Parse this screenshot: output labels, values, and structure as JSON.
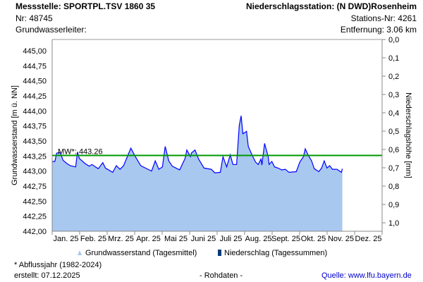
{
  "header": {
    "station": "Messstelle: SPORTPL.TSV 1860 35",
    "nr": "Nr: 48745",
    "aquifer": "Grundwasserleiter:",
    "precip_station": "Niederschlagsstation: (N DWD)Rosenheim",
    "precip_nr": "Stations-Nr: 4261",
    "distance": "Entfernung: 3.06 km"
  },
  "chart_data": {
    "type": "area",
    "ylabel": "Grundwasserstand [m ü. NN]",
    "y2label": "Niederschlagshöhe [mm]",
    "ylim": [
      442.0,
      445.0
    ],
    "y2lim": [
      0,
      1.0
    ],
    "yticks": [
      "442,00",
      "442,25",
      "442,50",
      "442,75",
      "443,00",
      "443,25",
      "443,50",
      "443,75",
      "444,00",
      "444,25",
      "444,50",
      "444,75",
      "445,00"
    ],
    "y2ticks": [
      "0,0",
      "0,1",
      "0,2",
      "0,3",
      "0,4",
      "0,5",
      "0,6",
      "0,7",
      "0,8",
      "0,9",
      "1,0"
    ],
    "months": [
      "Jan. 25",
      "Feb. 25",
      "Mrz. 25",
      "Apr. 25",
      "Mai 25",
      "Juni 25",
      "Juli 25",
      "Aug. 25",
      "Sept. 25",
      "Okt. 25",
      "Nov. 25",
      "Dez. 25"
    ],
    "mean": {
      "label": "MW*: 443.26",
      "value": 443.26,
      "color": "#009900"
    },
    "series": [
      {
        "name": "Grundwasserstand (Tagesmittel)",
        "color": "#0000ff",
        "fill": "#a8c8f0",
        "day": [
          0,
          3,
          5,
          9,
          12,
          16,
          20,
          26,
          28,
          30,
          36,
          41,
          44,
          48,
          51,
          56,
          59,
          67,
          71,
          75,
          79,
          87,
          92,
          98,
          106,
          110,
          114,
          118,
          122,
          125,
          129,
          133,
          141,
          147,
          149,
          153,
          154,
          158,
          162,
          168,
          176,
          180,
          186,
          189,
          193,
          197,
          200,
          204,
          207,
          209,
          211,
          215,
          217,
          221,
          225,
          228,
          231,
          232,
          235,
          239,
          240,
          243,
          246,
          250,
          254,
          258,
          262,
          270,
          274,
          278,
          280,
          283,
          287,
          290,
          295,
          298,
          301,
          304,
          307,
          310,
          315,
          320,
          321
        ],
        "values": [
          443.16,
          443.16,
          443.3,
          443.31,
          443.18,
          443.13,
          443.09,
          443.07,
          443.32,
          443.21,
          443.13,
          443.08,
          443.11,
          443.07,
          443.04,
          443.14,
          443.05,
          442.98,
          443.09,
          443.03,
          443.09,
          443.38,
          443.24,
          443.09,
          443.03,
          443.0,
          443.17,
          443.03,
          443.07,
          443.41,
          443.17,
          443.08,
          443.02,
          443.21,
          443.35,
          443.24,
          443.3,
          443.35,
          443.2,
          443.05,
          443.03,
          442.97,
          442.98,
          443.24,
          443.07,
          443.27,
          443.11,
          443.11,
          443.76,
          443.92,
          443.62,
          443.66,
          443.41,
          443.27,
          443.15,
          443.11,
          443.2,
          443.1,
          443.46,
          443.24,
          443.11,
          443.16,
          443.07,
          443.05,
          443.02,
          443.03,
          442.98,
          442.99,
          443.15,
          443.24,
          443.37,
          443.27,
          443.17,
          443.04,
          442.99,
          443.05,
          443.17,
          443.05,
          443.09,
          443.03,
          443.03,
          442.98,
          443.04
        ]
      },
      {
        "name": "Niederschlag (Tagessummen)",
        "color": "#003c78",
        "values": []
      }
    ]
  },
  "footer": {
    "note": "* Abflussjahr (1982-2024)",
    "created": "erstellt:  07.12.2025",
    "raw": "- Rohdaten -",
    "source_label": "Quelle:",
    "source_url": "www.lfu.bayern.de"
  }
}
